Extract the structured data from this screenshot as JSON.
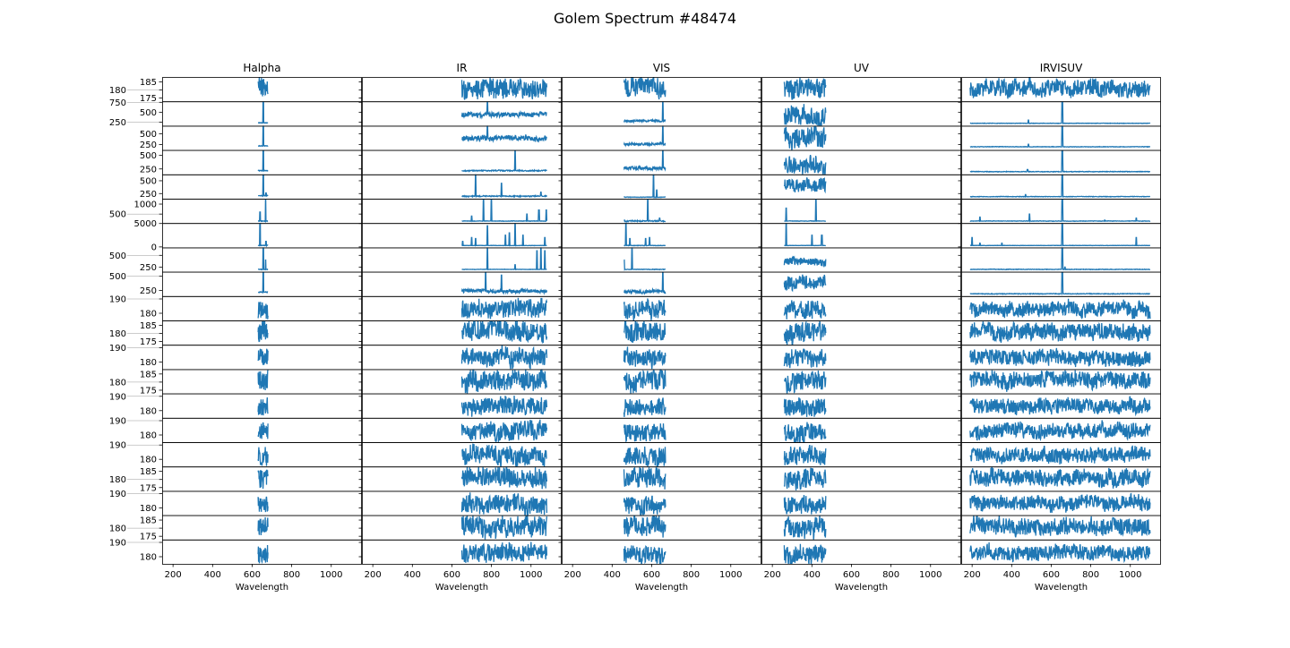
{
  "chart_data": {
    "type": "line",
    "title": "Golem Spectrum #48474",
    "xlabel": "Wavelength",
    "xlim": [
      145,
      1155
    ],
    "xticks": [
      200,
      400,
      600,
      800,
      1000
    ],
    "line_color": "#1f77b4",
    "grid": false,
    "columns": [
      {
        "title": "Halpha",
        "range": [
          630,
          680
        ]
      },
      {
        "title": "IR",
        "range": [
          650,
          1080
        ]
      },
      {
        "title": "VIS",
        "range": [
          460,
          670
        ]
      },
      {
        "title": "UV",
        "range": [
          260,
          470
        ]
      },
      {
        "title": "IRVISUV",
        "range": [
          190,
          1100
        ]
      }
    ],
    "rows": [
      {
        "ylim": [
          173,
          188
        ],
        "yticks": [
          175,
          180,
          185
        ],
        "panels": [
          [
            181,
            6,
            []
          ],
          [
            181,
            6,
            []
          ],
          [
            181,
            6,
            []
          ],
          [
            181,
            6,
            []
          ],
          [
            181,
            5,
            []
          ]
        ]
      },
      {
        "ylim": [
          160,
          775
        ],
        "yticks": [
          250,
          500,
          750
        ],
        "panels": [
          [
            230,
            5,
            [
              [
                656,
                775
              ]
            ]
          ],
          [
            440,
            60,
            [
              [
                780,
                775
              ]
            ]
          ],
          [
            280,
            25,
            [
              [
                656,
                775
              ]
            ]
          ],
          [
            430,
            250,
            []
          ],
          [
            220,
            5,
            [
              [
                485,
                300
              ],
              [
                656,
                775
              ]
            ]
          ]
        ]
      },
      {
        "ylim": [
          125,
          690
        ],
        "yticks": [
          250,
          500
        ],
        "panels": [
          [
            220,
            5,
            [
              [
                656,
                690
              ]
            ]
          ],
          [
            400,
            60,
            [
              [
                780,
                690
              ]
            ]
          ],
          [
            260,
            30,
            [
              [
                656,
                690
              ]
            ]
          ],
          [
            420,
            220,
            []
          ],
          [
            200,
            5,
            [
              [
                485,
                260
              ],
              [
                656,
                690
              ]
            ]
          ]
        ]
      },
      {
        "ylim": [
          150,
          600
        ],
        "yticks": [
          250,
          500
        ],
        "panels": [
          [
            220,
            5,
            [
              [
                656,
                600
              ]
            ]
          ],
          [
            220,
            10,
            [
              [
                920,
                600
              ]
            ]
          ],
          [
            260,
            30,
            [
              [
                656,
                600
              ]
            ]
          ],
          [
            330,
            150,
            []
          ],
          [
            200,
            5,
            [
              [
                480,
                240
              ],
              [
                656,
                600
              ]
            ]
          ]
        ]
      },
      {
        "ylim": [
          150,
          625
        ],
        "yticks": [
          250,
          500
        ],
        "panels": [
          [
            210,
            5,
            [
              [
                656,
                625
              ],
              [
                670,
                260
              ]
            ]
          ],
          [
            200,
            10,
            [
              [
                720,
                625
              ],
              [
                850,
                450
              ],
              [
                1050,
                280
              ]
            ]
          ],
          [
            180,
            5,
            [
              [
                610,
                625
              ],
              [
                625,
                320
              ]
            ]
          ],
          [
            430,
            120,
            []
          ],
          [
            190,
            5,
            [
              [
                470,
                230
              ],
              [
                656,
                625
              ]
            ]
          ]
        ]
      },
      {
        "ylim": [
          50,
          1270
        ],
        "yticks": [
          500,
          1000
        ],
        "panels": [
          [
            150,
            10,
            [
              [
                640,
                600
              ],
              [
                668,
                1270
              ]
            ]
          ],
          [
            150,
            10,
            [
              [
                700,
                400
              ],
              [
                760,
                1270
              ],
              [
                800,
                1270
              ],
              [
                980,
                500
              ],
              [
                1040,
                700
              ],
              [
                1078,
                700
              ]
            ]
          ],
          [
            150,
            30,
            [
              [
                460,
                200
              ],
              [
                580,
                1270
              ],
              [
                640,
                300
              ]
            ]
          ],
          [
            150,
            10,
            [
              [
                270,
                800
              ],
              [
                420,
                1270
              ]
            ]
          ],
          [
            150,
            10,
            [
              [
                240,
                350
              ],
              [
                490,
                500
              ],
              [
                656,
                1270
              ],
              [
                870,
                200
              ],
              [
                1030,
                300
              ]
            ]
          ]
        ]
      },
      {
        "ylim": [
          -100,
          5100
        ],
        "yticks": [
          0,
          5000
        ],
        "panels": [
          [
            300,
            50,
            [
              [
                640,
                5000
              ],
              [
                670,
                1200
              ]
            ]
          ],
          [
            300,
            30,
            [
              [
                655,
                1200
              ],
              [
                700,
                2000
              ],
              [
                720,
                1800
              ],
              [
                780,
                4500
              ],
              [
                870,
                2500
              ],
              [
                890,
                3000
              ],
              [
                920,
                5000
              ],
              [
                960,
                2500
              ],
              [
                1070,
                2000
              ]
            ]
          ],
          [
            300,
            50,
            [
              [
                470,
                5000
              ],
              [
                490,
                1800
              ],
              [
                570,
                1800
              ],
              [
                590,
                2000
              ]
            ]
          ],
          [
            300,
            30,
            [
              [
                270,
                5000
              ],
              [
                400,
                2500
              ],
              [
                450,
                2500
              ]
            ]
          ],
          [
            300,
            30,
            [
              [
                200,
                2000
              ],
              [
                240,
                800
              ],
              [
                350,
                800
              ],
              [
                656,
                5000
              ],
              [
                1030,
                2000
              ]
            ]
          ]
        ]
      },
      {
        "ylim": [
          150,
          670
        ],
        "yticks": [
          250,
          500
        ],
        "panels": [
          [
            200,
            5,
            [
              [
                656,
                670
              ],
              [
                668,
                400
              ]
            ]
          ],
          [
            200,
            3,
            [
              [
                780,
                670
              ],
              [
                920,
                300
              ],
              [
                1030,
                600
              ],
              [
                1050,
                670
              ],
              [
                1070,
                600
              ]
            ]
          ],
          [
            200,
            5,
            [
              [
                460,
                400
              ],
              [
                500,
                670
              ]
            ]
          ],
          [
            360,
            80,
            []
          ],
          [
            200,
            5,
            [
              [
                656,
                670
              ],
              [
                670,
                250
              ]
            ]
          ]
        ]
      },
      {
        "ylim": [
          150,
          580
        ],
        "yticks": [
          250,
          500
        ],
        "panels": [
          [
            220,
            5,
            [
              [
                656,
                580
              ]
            ]
          ],
          [
            240,
            30,
            [
              [
                770,
                580
              ],
              [
                850,
                520
              ]
            ]
          ],
          [
            230,
            30,
            [
              [
                656,
                580
              ]
            ]
          ],
          [
            380,
            120,
            []
          ],
          [
            190,
            5,
            [
              [
                656,
                580
              ]
            ]
          ]
        ]
      },
      {
        "ylim": [
          175,
          192
        ],
        "yticks": [
          180,
          190
        ],
        "panels": [
          [
            182,
            6,
            []
          ],
          [
            183,
            6,
            []
          ],
          [
            182,
            6,
            []
          ],
          [
            182,
            6,
            []
          ],
          [
            183,
            5,
            []
          ]
        ]
      },
      {
        "ylim": [
          173,
          188
        ],
        "yticks": [
          175,
          180,
          185
        ],
        "panels": [
          [
            181,
            6,
            []
          ],
          [
            181,
            6,
            []
          ],
          [
            181,
            6,
            []
          ],
          [
            181,
            6,
            []
          ],
          [
            181,
            5,
            []
          ]
        ]
      },
      {
        "ylim": [
          175,
          192
        ],
        "yticks": [
          180,
          190
        ],
        "panels": [
          [
            182,
            6,
            []
          ],
          [
            183,
            6,
            []
          ],
          [
            182,
            6,
            []
          ],
          [
            182,
            6,
            []
          ],
          [
            183,
            5,
            []
          ]
        ]
      },
      {
        "ylim": [
          173,
          188
        ],
        "yticks": [
          175,
          180,
          185
        ],
        "panels": [
          [
            181,
            6,
            []
          ],
          [
            181,
            6,
            []
          ],
          [
            181,
            6,
            []
          ],
          [
            181,
            6,
            []
          ],
          [
            181,
            5,
            []
          ]
        ]
      },
      {
        "ylim": [
          175,
          192
        ],
        "yticks": [
          180,
          190
        ],
        "panels": [
          [
            182,
            6,
            []
          ],
          [
            183,
            6,
            []
          ],
          [
            182,
            6,
            []
          ],
          [
            182,
            6,
            []
          ],
          [
            183,
            5,
            []
          ]
        ]
      },
      {
        "ylim": [
          175,
          192
        ],
        "yticks": [
          180,
          190
        ],
        "panels": [
          [
            182,
            6,
            []
          ],
          [
            183,
            6,
            []
          ],
          [
            182,
            6,
            []
          ],
          [
            182,
            6,
            []
          ],
          [
            183,
            5,
            []
          ]
        ]
      },
      {
        "ylim": [
          175,
          192
        ],
        "yticks": [
          180,
          190
        ],
        "panels": [
          [
            182,
            6,
            []
          ],
          [
            183,
            6,
            []
          ],
          [
            182,
            6,
            []
          ],
          [
            182,
            6,
            []
          ],
          [
            183,
            5,
            []
          ]
        ]
      },
      {
        "ylim": [
          173,
          188
        ],
        "yticks": [
          175,
          180,
          185
        ],
        "panels": [
          [
            181,
            6,
            []
          ],
          [
            181,
            6,
            []
          ],
          [
            181,
            6,
            []
          ],
          [
            181,
            6,
            []
          ],
          [
            181,
            5,
            []
          ]
        ]
      },
      {
        "ylim": [
          175,
          192
        ],
        "yticks": [
          180,
          190
        ],
        "panels": [
          [
            182,
            6,
            []
          ],
          [
            183,
            6,
            []
          ],
          [
            182,
            6,
            []
          ],
          [
            182,
            6,
            []
          ],
          [
            183,
            5,
            []
          ]
        ]
      },
      {
        "ylim": [
          173,
          188
        ],
        "yticks": [
          175,
          180,
          185
        ],
        "panels": [
          [
            181,
            6,
            []
          ],
          [
            181,
            6,
            []
          ],
          [
            181,
            6,
            []
          ],
          [
            181,
            6,
            []
          ],
          [
            181,
            5,
            []
          ]
        ]
      },
      {
        "ylim": [
          175,
          192
        ],
        "yticks": [
          180,
          190
        ],
        "panels": [
          [
            182,
            6,
            []
          ],
          [
            183,
            6,
            []
          ],
          [
            182,
            6,
            []
          ],
          [
            182,
            6,
            []
          ],
          [
            183,
            5,
            []
          ]
        ]
      }
    ]
  }
}
